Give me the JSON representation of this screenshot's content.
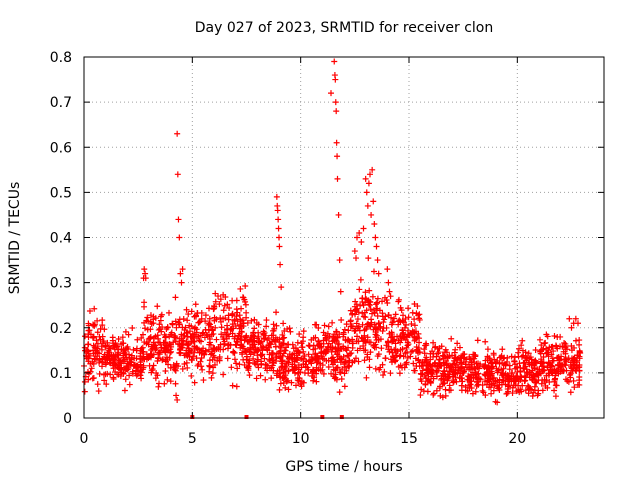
{
  "chart_data": {
    "type": "scatter",
    "title": "Day 027 of 2023, SRMTID for receiver clon",
    "xlabel": "GPS time / hours",
    "ylabel": "SRMTID / TECUs",
    "xlim": [
      0,
      24
    ],
    "ylim": [
      0,
      0.8
    ],
    "xticks": [
      "0",
      "5",
      "10",
      "15",
      "20"
    ],
    "yticks": [
      "0",
      "0.1",
      "0.2",
      "0.3",
      "0.4",
      "0.5",
      "0.6",
      "0.7",
      "0.8"
    ],
    "grid": true,
    "marker": "plus",
    "color": "#ff0000",
    "series": [
      {
        "name": "SRMTID",
        "noise_segments": [
          {
            "x0": 0.0,
            "x1": 1.0,
            "base": 0.15,
            "spread": 0.07
          },
          {
            "x0": 1.0,
            "x1": 2.7,
            "base": 0.13,
            "spread": 0.05
          },
          {
            "x0": 2.7,
            "x1": 4.2,
            "base": 0.16,
            "spread": 0.07
          },
          {
            "x0": 4.2,
            "x1": 6.0,
            "base": 0.17,
            "spread": 0.07
          },
          {
            "x0": 6.0,
            "x1": 7.5,
            "base": 0.19,
            "spread": 0.08
          },
          {
            "x0": 7.5,
            "x1": 9.0,
            "base": 0.15,
            "spread": 0.06
          },
          {
            "x0": 9.0,
            "x1": 11.0,
            "base": 0.13,
            "spread": 0.06
          },
          {
            "x0": 11.0,
            "x1": 12.3,
            "base": 0.15,
            "spread": 0.07
          },
          {
            "x0": 12.3,
            "x1": 14.0,
            "base": 0.2,
            "spread": 0.1
          },
          {
            "x0": 14.0,
            "x1": 15.5,
            "base": 0.18,
            "spread": 0.07
          },
          {
            "x0": 15.5,
            "x1": 18.0,
            "base": 0.11,
            "spread": 0.05
          },
          {
            "x0": 18.0,
            "x1": 21.0,
            "base": 0.1,
            "spread": 0.05
          },
          {
            "x0": 21.0,
            "x1": 22.9,
            "base": 0.12,
            "spread": 0.05
          }
        ],
        "points": [
          [
            2.75,
            0.31
          ],
          [
            2.78,
            0.33
          ],
          [
            2.82,
            0.32
          ],
          [
            2.85,
            0.31
          ],
          [
            4.3,
            0.63
          ],
          [
            4.33,
            0.54
          ],
          [
            4.36,
            0.44
          ],
          [
            4.4,
            0.4
          ],
          [
            4.45,
            0.32
          ],
          [
            4.5,
            0.3
          ],
          [
            4.55,
            0.33
          ],
          [
            4.25,
            0.05
          ],
          [
            4.3,
            0.04
          ],
          [
            8.9,
            0.49
          ],
          [
            8.92,
            0.47
          ],
          [
            8.94,
            0.46
          ],
          [
            8.96,
            0.44
          ],
          [
            8.98,
            0.42
          ],
          [
            9.0,
            0.4
          ],
          [
            9.02,
            0.38
          ],
          [
            9.05,
            0.34
          ],
          [
            9.1,
            0.29
          ],
          [
            11.4,
            0.72
          ],
          [
            11.55,
            0.79
          ],
          [
            11.58,
            0.76
          ],
          [
            11.6,
            0.75
          ],
          [
            11.62,
            0.7
          ],
          [
            11.64,
            0.68
          ],
          [
            11.66,
            0.61
          ],
          [
            11.68,
            0.58
          ],
          [
            11.7,
            0.53
          ],
          [
            11.75,
            0.45
          ],
          [
            11.8,
            0.35
          ],
          [
            11.85,
            0.28
          ],
          [
            12.5,
            0.37
          ],
          [
            12.6,
            0.4
          ],
          [
            12.7,
            0.41
          ],
          [
            12.8,
            0.39
          ],
          [
            12.9,
            0.42
          ],
          [
            13.0,
            0.53
          ],
          [
            13.05,
            0.5
          ],
          [
            13.1,
            0.47
          ],
          [
            13.15,
            0.52
          ],
          [
            13.2,
            0.54
          ],
          [
            13.25,
            0.45
          ],
          [
            13.3,
            0.55
          ],
          [
            13.35,
            0.48
          ],
          [
            13.4,
            0.43
          ],
          [
            13.45,
            0.4
          ],
          [
            13.5,
            0.38
          ],
          [
            13.55,
            0.35
          ],
          [
            13.6,
            0.32
          ],
          [
            14.0,
            0.33
          ],
          [
            14.05,
            0.3
          ],
          [
            14.1,
            0.28
          ],
          [
            14.15,
            0.27
          ],
          [
            22.4,
            0.22
          ],
          [
            22.5,
            0.2
          ],
          [
            22.6,
            0.21
          ],
          [
            22.7,
            0.22
          ],
          [
            22.8,
            0.21
          ]
        ],
        "zero_points": [
          5.0,
          7.5,
          11.0,
          11.9
        ]
      }
    ]
  }
}
